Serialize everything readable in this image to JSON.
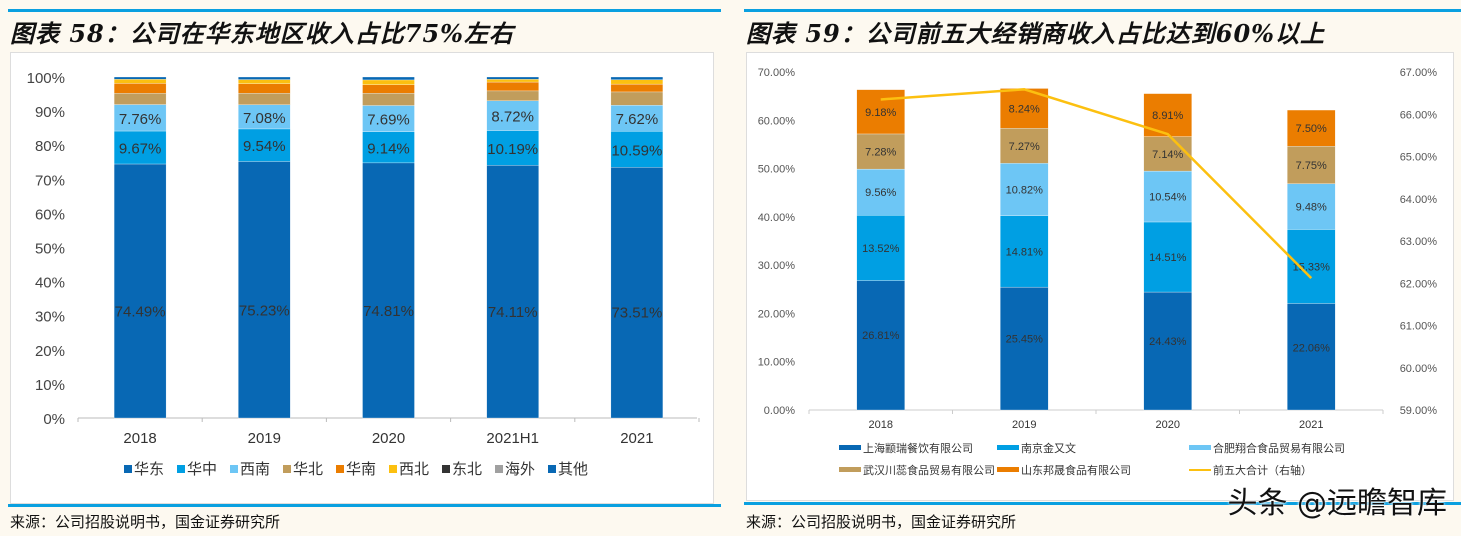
{
  "left": {
    "title": "图表 58：公司在华东地区收入占比75%左右",
    "source": "来源：公司招股说明书，国金证券研究所"
  },
  "right": {
    "title": "图表 59：公司前五大经销商收入占比达到60%以上",
    "source": "来源：公司招股说明书，国金证券研究所"
  },
  "watermark": "头条 @远瞻智库",
  "chart_data": [
    {
      "type": "bar",
      "stacked": true,
      "title": "公司在华东地区收入占比75%左右",
      "categories": [
        "2018",
        "2019",
        "2020",
        "2021H1",
        "2021"
      ],
      "ylim": [
        0,
        100
      ],
      "yticks": [
        "0%",
        "10%",
        "20%",
        "30%",
        "40%",
        "50%",
        "60%",
        "70%",
        "80%",
        "90%",
        "100%"
      ],
      "legend_position": "bottom",
      "series": [
        {
          "name": "华东",
          "color": "#0868b4",
          "values": [
            74.49,
            75.23,
            74.81,
            74.11,
            73.51
          ],
          "labels": [
            "74.49%",
            "75.23%",
            "74.81%",
            "74.11%",
            "73.51%"
          ]
        },
        {
          "name": "华中",
          "color": "#009fe3",
          "values": [
            9.67,
            9.54,
            9.14,
            10.19,
            10.59
          ],
          "labels": [
            "9.67%",
            "9.54%",
            "9.14%",
            "10.19%",
            "10.59%"
          ]
        },
        {
          "name": "西南",
          "color": "#6dc6f5",
          "values": [
            7.76,
            7.08,
            7.69,
            8.72,
            7.62
          ],
          "labels": [
            "7.76%",
            "7.08%",
            "7.69%",
            "8.72%",
            "7.62%"
          ]
        },
        {
          "name": "华北",
          "color": "#c19d5c",
          "values": [
            3.3,
            3.4,
            3.6,
            2.9,
            3.9
          ]
        },
        {
          "name": "华南",
          "color": "#eb7d00",
          "values": [
            2.9,
            2.8,
            2.5,
            2.6,
            2.3
          ]
        },
        {
          "name": "西北",
          "color": "#fcc010",
          "values": [
            1.2,
            1.2,
            1.4,
            0.8,
            1.3
          ]
        },
        {
          "name": "东北",
          "color": "#333333",
          "values": [
            0,
            0,
            0,
            0,
            0
          ]
        },
        {
          "name": "海外",
          "color": "#a0a0a0",
          "values": [
            0,
            0,
            0,
            0,
            0
          ]
        },
        {
          "name": "其他",
          "color": "#0868b4",
          "values": [
            0.68,
            0.75,
            0.86,
            0.68,
            0.78
          ]
        }
      ]
    },
    {
      "type": "bar",
      "stacked": true,
      "title": "公司前五大经销商收入占比达到60%以上",
      "categories": [
        "2018",
        "2019",
        "2020",
        "2021"
      ],
      "ylim": [
        0,
        70
      ],
      "yticks": [
        "0.00%",
        "10.00%",
        "20.00%",
        "30.00%",
        "40.00%",
        "50.00%",
        "60.00%",
        "70.00%"
      ],
      "y2lim": [
        59,
        67
      ],
      "y2ticks": [
        "59.00%",
        "60.00%",
        "61.00%",
        "62.00%",
        "63.00%",
        "64.00%",
        "65.00%",
        "66.00%",
        "67.00%"
      ],
      "legend_position": "bottom",
      "series": [
        {
          "name": "上海颛瑞餐饮有限公司",
          "color": "#0868b4",
          "values": [
            26.81,
            25.45,
            24.43,
            22.06
          ],
          "labels": [
            "26.81%",
            "25.45%",
            "24.43%",
            "22.06%"
          ]
        },
        {
          "name": "南京金又文",
          "color": "#009fe3",
          "values": [
            13.52,
            14.81,
            14.51,
            15.33
          ],
          "labels": [
            "13.52%",
            "14.81%",
            "14.51%",
            "15.33%"
          ]
        },
        {
          "name": "合肥翔合食品贸易有限公司",
          "color": "#6dc6f5",
          "values": [
            9.56,
            10.82,
            10.54,
            9.48
          ],
          "labels": [
            "9.56%",
            "10.82%",
            "10.54%",
            "9.48%"
          ]
        },
        {
          "name": "武汉川蕊食品贸易有限公司",
          "color": "#c19d5c",
          "values": [
            7.28,
            7.27,
            7.14,
            7.75
          ],
          "labels": [
            "7.28%",
            "7.27%",
            "7.14%",
            "7.75%"
          ]
        },
        {
          "name": "山东邦晟食品有限公司",
          "color": "#eb7d00",
          "values": [
            9.18,
            8.24,
            8.91,
            7.5
          ],
          "labels": [
            "9.18%",
            "8.24%",
            "8.91%",
            "7.50%"
          ]
        },
        {
          "name": "前五大合计（右轴）",
          "color": "#fcc010",
          "type": "line",
          "axis": "right",
          "values": [
            66.35,
            66.59,
            65.53,
            62.12
          ]
        }
      ]
    }
  ]
}
